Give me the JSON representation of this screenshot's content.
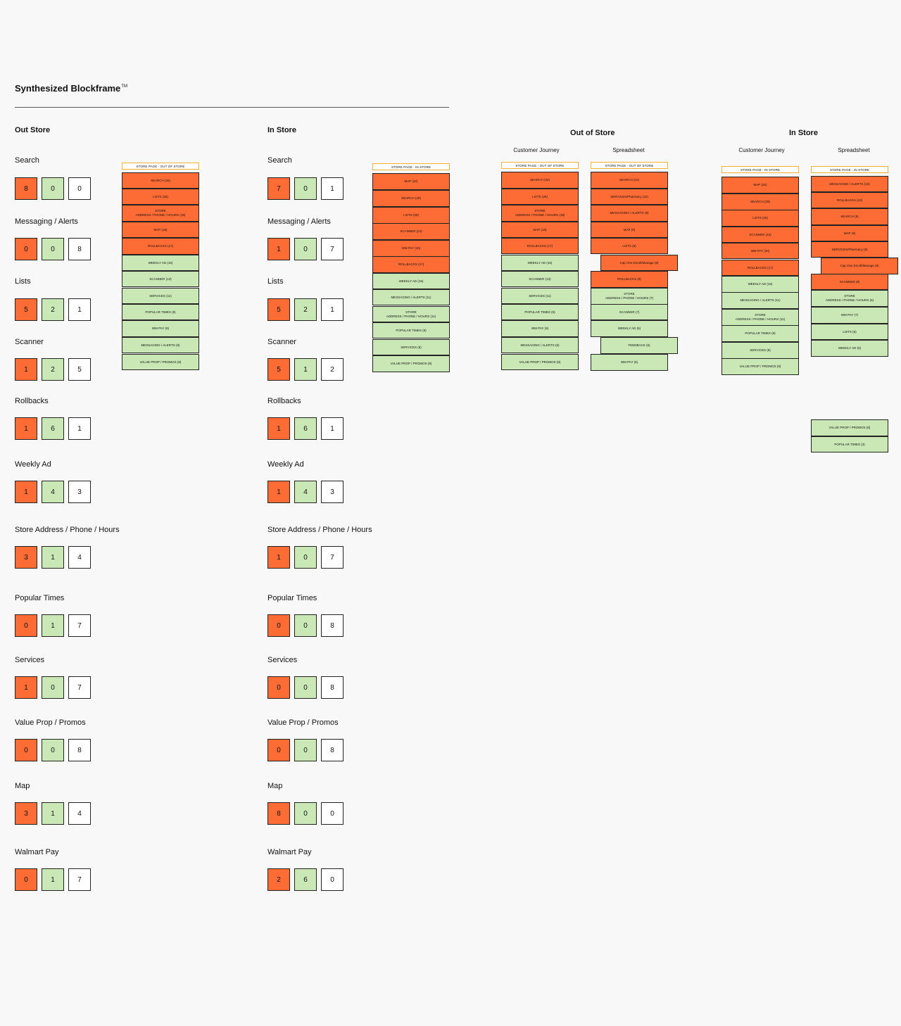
{
  "header": {
    "title": "Synthesized Blockframe",
    "trademark": "TM"
  },
  "left_panels": [
    {
      "title": "Out Store",
      "categories": [
        {
          "label": "Search",
          "values": [
            "8",
            "0",
            "0"
          ]
        },
        {
          "label": "Messaging / Alerts",
          "values": [
            "0",
            "0",
            "8"
          ]
        },
        {
          "label": "Lists",
          "values": [
            "5",
            "2",
            "1"
          ]
        },
        {
          "label": "Scanner",
          "values": [
            "1",
            "2",
            "5"
          ]
        },
        {
          "label": "Rollbacks",
          "values": [
            "1",
            "6",
            "1"
          ]
        },
        {
          "label": "Weekly Ad",
          "values": [
            "1",
            "4",
            "3"
          ]
        },
        {
          "label": "Store Address / Phone / Hours",
          "values": [
            "3",
            "1",
            "4"
          ]
        },
        {
          "label": "Popular Times",
          "values": [
            "0",
            "1",
            "7"
          ]
        },
        {
          "label": "Services",
          "values": [
            "1",
            "0",
            "7"
          ]
        },
        {
          "label": "Value Prop / Promos",
          "values": [
            "0",
            "0",
            "8"
          ]
        },
        {
          "label": "Map",
          "values": [
            "3",
            "1",
            "4"
          ]
        },
        {
          "label": "Walmart Pay",
          "values": [
            "0",
            "1",
            "7"
          ]
        }
      ]
    },
    {
      "title": "In Store",
      "categories": [
        {
          "label": "Search",
          "values": [
            "7",
            "0",
            "1"
          ]
        },
        {
          "label": "Messaging / Alerts",
          "values": [
            "1",
            "0",
            "7"
          ]
        },
        {
          "label": "Lists",
          "values": [
            "5",
            "2",
            "1"
          ]
        },
        {
          "label": "Scanner",
          "values": [
            "5",
            "1",
            "2"
          ]
        },
        {
          "label": "Rollbacks",
          "values": [
            "1",
            "6",
            "1"
          ]
        },
        {
          "label": "Weekly Ad",
          "values": [
            "1",
            "4",
            "3"
          ]
        },
        {
          "label": "Store Address / Phone / Hours",
          "values": [
            "1",
            "0",
            "7"
          ]
        },
        {
          "label": "Popular Times",
          "values": [
            "0",
            "0",
            "8"
          ]
        },
        {
          "label": "Services",
          "values": [
            "0",
            "0",
            "8"
          ]
        },
        {
          "label": "Value Prop / Promos",
          "values": [
            "0",
            "0",
            "8"
          ]
        },
        {
          "label": "Map",
          "values": [
            "8",
            "0",
            "0"
          ]
        },
        {
          "label": "Walmart Pay",
          "values": [
            "2",
            "6",
            "0"
          ]
        }
      ]
    }
  ],
  "right_sections": {
    "out_of_store": "Out of Store",
    "in_store": "In Store",
    "customer_journey": "Customer Journey",
    "spreadsheet": "Spreadsheet"
  },
  "stacks": [
    {
      "header": "STORE PAGE - OUT OF STORE",
      "blocks": [
        {
          "text": "SEARCH (32)",
          "color": "o"
        },
        {
          "text": "LISTS (25)",
          "color": "o"
        },
        {
          "text": "STORE\nADDRESS / PHONE / HOURS (18)",
          "color": "o"
        },
        {
          "text": "MAP (18)",
          "color": "o"
        },
        {
          "text": "ROLLBACKS (17)",
          "color": "o"
        },
        {
          "text": "WEEKLY AD (15)",
          "color": "g"
        },
        {
          "text": "SCANNER (13)",
          "color": "g"
        },
        {
          "text": "SERVICES (11)",
          "color": "g"
        },
        {
          "text": "POPULAR TIMES (9)",
          "color": "g"
        },
        {
          "text": "WM PAY (9)",
          "color": "g"
        },
        {
          "text": "MESSAGING / ALERTS (8)",
          "color": "g"
        },
        {
          "text": "VALUE PROP / PROMOS (8)",
          "color": "g"
        }
      ]
    },
    {
      "header": "STORE PAGE - IN STORE",
      "blocks": [
        {
          "text": "MAP (32)",
          "color": "o"
        },
        {
          "text": "SEARCH (29)",
          "color": "o"
        },
        {
          "text": "LISTS (25)",
          "color": "o"
        },
        {
          "text": "SCANNER (24)",
          "color": "o"
        },
        {
          "text": "WM PAY (20)",
          "color": "o"
        },
        {
          "text": "ROLLBACKS (17)",
          "color": "o"
        },
        {
          "text": "WEEKLY AD (15)",
          "color": "g"
        },
        {
          "text": "MESSAGING / ALERTS (11)",
          "color": "g"
        },
        {
          "text": "STORE\nADDRESS / PHONE / HOURS (11)",
          "color": "g"
        },
        {
          "text": "POPULAR TIMES (9)",
          "color": "g"
        },
        {
          "text": "SERVICES (8)",
          "color": "g"
        },
        {
          "text": "VALUE PROP / PROMOS (8)",
          "color": "g"
        }
      ]
    },
    {
      "header": "STORE PAGE - OUT OF STORE",
      "blocks": [
        {
          "text": "SEARCH (32)",
          "color": "o"
        },
        {
          "text": "LISTS (25)",
          "color": "o"
        },
        {
          "text": "STORE\nADDRESS / PHONE / HOURS (18)",
          "color": "o"
        },
        {
          "text": "MAP (18)",
          "color": "o"
        },
        {
          "text": "ROLLBACKS (17)",
          "color": "o"
        },
        {
          "text": "WEEKLY AD (15)",
          "color": "g"
        },
        {
          "text": "SCANNER (13)",
          "color": "g"
        },
        {
          "text": "SERVICES (11)",
          "color": "g"
        },
        {
          "text": "POPULAR TIMES (9)",
          "color": "g"
        },
        {
          "text": "WM PAY (9)",
          "color": "g"
        },
        {
          "text": "MESSAGING / ALERTS (8)",
          "color": "g"
        },
        {
          "text": "VALUE PROP / PROMOS (8)",
          "color": "g"
        }
      ]
    },
    {
      "header": "STORE PAGE - OUT OF STORE",
      "blocks": [
        {
          "text": "SEARCH (10)",
          "color": "o"
        },
        {
          "text": "SERVICES/Pharmacy (10)",
          "color": "o"
        },
        {
          "text": "MESSAGING / ALERTS (9)",
          "color": "o"
        },
        {
          "text": "MAP (8)",
          "color": "o"
        },
        {
          "text": "LISTS (8)",
          "color": "o"
        },
        {
          "text": "Cap One Enroll/Manage (8)",
          "color": "o",
          "offset": true
        },
        {
          "text": "ROLLBACKS (8)",
          "color": "o"
        },
        {
          "text": "STORE\nADDRESS / PHONE / HOURS (7)",
          "color": "g"
        },
        {
          "text": "SCANNER (7)",
          "color": "g"
        },
        {
          "text": "WEEKLY AD (6)",
          "color": "g"
        },
        {
          "text": "FEEDBACK (6)",
          "color": "g",
          "offset": true
        },
        {
          "text": "WM PAY (5)",
          "color": "g"
        }
      ]
    },
    {
      "header": "STORE PAGE - IN STORE",
      "blocks": [
        {
          "text": "MAP (32)",
          "color": "o"
        },
        {
          "text": "SEARCH (29)",
          "color": "o"
        },
        {
          "text": "LISTS (25)",
          "color": "o"
        },
        {
          "text": "SCANNER (24)",
          "color": "o"
        },
        {
          "text": "WM PAY (20)",
          "color": "o"
        },
        {
          "text": "ROLLBACKS (17)",
          "color": "o"
        },
        {
          "text": "WEEKLY AD (15)",
          "color": "g"
        },
        {
          "text": "MESSAGING / ALERTS (11)",
          "color": "g"
        },
        {
          "text": "STORE\nADDRESS / PHONE / HOURS (11)",
          "color": "g"
        },
        {
          "text": "POPULAR TIMES (9)",
          "color": "g"
        },
        {
          "text": "SERVICES (8)",
          "color": "g"
        },
        {
          "text": "VALUE PROP / PROMOS (8)",
          "color": "g"
        }
      ]
    },
    {
      "header": "STORE PAGE - IN STORE",
      "blocks": [
        {
          "text": "MESSAGING / ALERTS (10)",
          "color": "o"
        },
        {
          "text": "ROLLBACKS (10)",
          "color": "o"
        },
        {
          "text": "SEARCH (9)",
          "color": "o"
        },
        {
          "text": "MAP (9)",
          "color": "o"
        },
        {
          "text": "SERVICES/Pharmacy (8)",
          "color": "o"
        },
        {
          "text": "Cap One Enroll/Manage (8)",
          "color": "o",
          "offset": true
        },
        {
          "text": "SCANNER (9)",
          "color": "o"
        },
        {
          "text": "STORE\nADDRESS / PHONE / HOURS (6)",
          "color": "g"
        },
        {
          "text": "WM PAY (7)",
          "color": "g"
        },
        {
          "text": "LISTS (6)",
          "color": "g"
        },
        {
          "text": "WEEKLY AD (6)",
          "color": "g"
        }
      ]
    },
    {
      "header": "",
      "blocks": [
        {
          "text": "VALUE PROP / PROMOS (8)",
          "color": "g"
        },
        {
          "text": "POPULAR TIMES (3)",
          "color": "g"
        }
      ]
    }
  ]
}
